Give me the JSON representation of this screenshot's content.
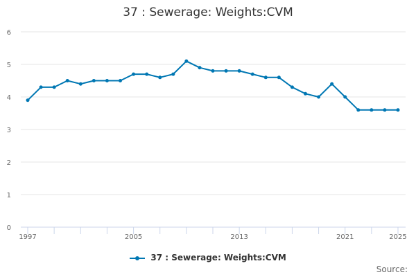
{
  "chart_data": {
    "type": "line",
    "title": "37 : Sewerage: Weights:CVM",
    "xlabel": "",
    "ylabel": "",
    "x": [
      1997,
      1998,
      1999,
      2000,
      2001,
      2002,
      2003,
      2004,
      2005,
      2006,
      2007,
      2008,
      2009,
      2010,
      2011,
      2012,
      2013,
      2014,
      2015,
      2016,
      2017,
      2018,
      2019,
      2020,
      2021,
      2022,
      2023,
      2024,
      2025
    ],
    "series": [
      {
        "name": "37 : Sewerage: Weights:CVM",
        "color": "#0077b3",
        "values": [
          3.9,
          4.3,
          4.3,
          4.5,
          4.4,
          4.5,
          4.5,
          4.5,
          4.7,
          4.7,
          4.6,
          4.7,
          5.1,
          4.9,
          4.8,
          4.8,
          4.8,
          4.7,
          4.6,
          4.6,
          4.3,
          4.1,
          4.0,
          4.4,
          4.0,
          3.6,
          3.6,
          3.6,
          3.6
        ]
      }
    ],
    "xlim": [
      1997,
      2025
    ],
    "ylim": [
      0,
      6
    ],
    "yticks": [
      0,
      1,
      2,
      3,
      4,
      5,
      6
    ],
    "xtick_labels": [
      "1997",
      "2005",
      "2013",
      "2021",
      "2025"
    ],
    "grid": true,
    "legend_position": "bottom"
  },
  "legend_label": "37 : Sewerage: Weights:CVM",
  "source_label": "Source:"
}
